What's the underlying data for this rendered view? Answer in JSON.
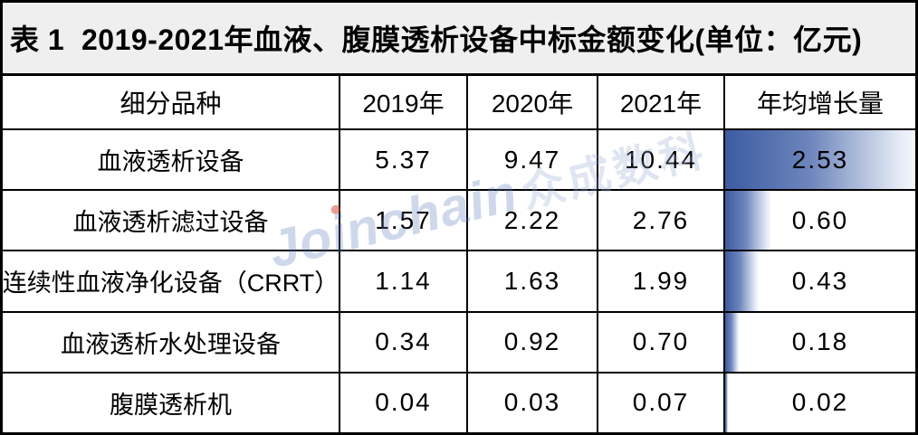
{
  "title": "表 1  2019-2021年血液、腹膜透析设备中标金额变化(单位：亿元)",
  "table": {
    "columns": [
      "细分品种",
      "2019年",
      "2020年",
      "2021年",
      "年均增长量"
    ],
    "rows": [
      {
        "name": "血液透析设备",
        "y2019": "5.37",
        "y2020": "9.47",
        "y2021": "10.44",
        "growth": "2.53"
      },
      {
        "name": "血液透析滤过设备",
        "y2019": "1.57",
        "y2020": "2.22",
        "y2021": "2.76",
        "growth": "0.60"
      },
      {
        "name": "连续性血液净化设备（CRRT）",
        "y2019": "1.14",
        "y2020": "1.63",
        "y2021": "1.99",
        "growth": "0.43"
      },
      {
        "name": "血液透析水处理设备",
        "y2019": "0.34",
        "y2020": "0.92",
        "y2021": "0.70",
        "growth": "0.18"
      },
      {
        "name": "腹膜透析机",
        "y2019": "0.04",
        "y2020": "0.03",
        "y2021": "0.07",
        "growth": "0.02"
      }
    ],
    "growth_bar_max": 2.53
  },
  "watermark": {
    "latin": "Joinchain",
    "cjk": "众成数科"
  },
  "colors": {
    "title_bg": "#efefef",
    "border": "#000000",
    "bar_gradient_start": "#3c5ba2",
    "bar_gradient_end": "#f4f7fc",
    "watermark_blue": "#607ebe",
    "watermark_dot_red": "#d94f38"
  }
}
